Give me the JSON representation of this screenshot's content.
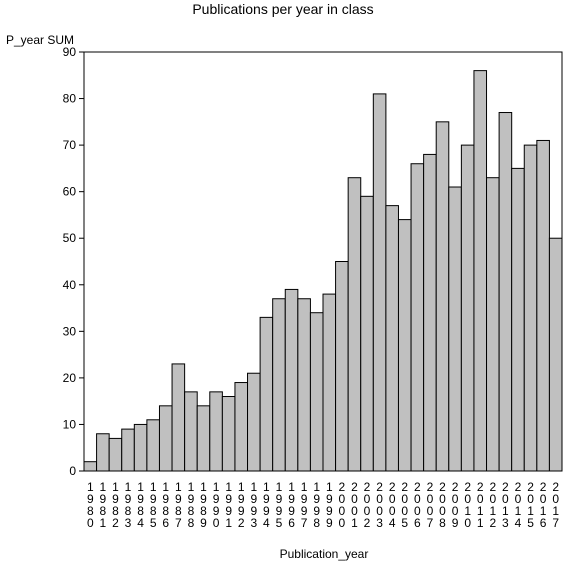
{
  "chart_data": {
    "type": "bar",
    "title": "Publications per year in class",
    "ylabel": "P_year SUM",
    "xlabel": "Publication_year",
    "categories": [
      "1980",
      "1981",
      "1982",
      "1983",
      "1984",
      "1985",
      "1986",
      "1987",
      "1988",
      "1989",
      "1990",
      "1991",
      "1992",
      "1993",
      "1994",
      "1995",
      "1996",
      "1997",
      "1998",
      "1999",
      "2000",
      "2001",
      "2002",
      "2003",
      "2004",
      "2005",
      "2006",
      "2007",
      "2008",
      "2009",
      "2010",
      "2011",
      "2012",
      "2013",
      "2014",
      "2015",
      "2016",
      "2017"
    ],
    "values": [
      2,
      8,
      7,
      9,
      10,
      11,
      14,
      23,
      17,
      14,
      17,
      16,
      19,
      21,
      33,
      37,
      39,
      37,
      34,
      38,
      45,
      63,
      59,
      81,
      57,
      54,
      66,
      68,
      75,
      61,
      70,
      86,
      63,
      77,
      65,
      70,
      71,
      50
    ],
    "ylim": [
      0,
      90
    ],
    "yticks": [
      0,
      10,
      20,
      30,
      40,
      50,
      60,
      70,
      80,
      90
    ],
    "grid": false,
    "legend": "none",
    "bar_color": "#c0c0c0",
    "bar_edge_color": "#000000"
  }
}
